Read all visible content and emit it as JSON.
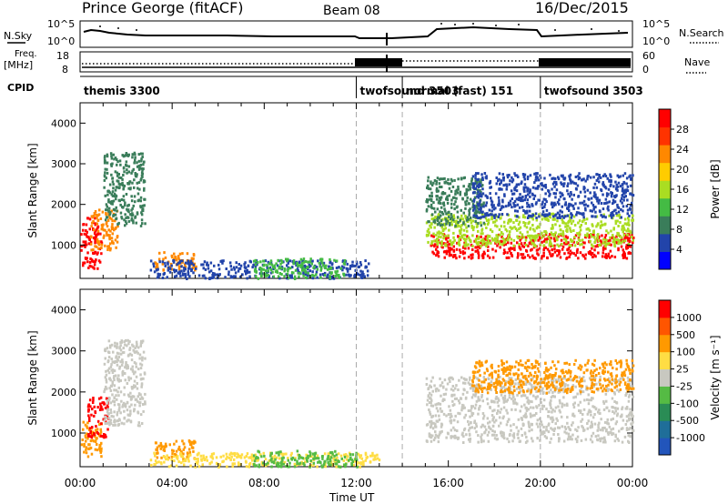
{
  "header": {
    "station": "Prince George (fitACF)",
    "beam": "Beam 08",
    "date": "16/Dec/2015"
  },
  "top_panels": {
    "nsky_label": "N.Sky",
    "nsearch_label": "N.Search",
    "noise_ticks": [
      "10^5",
      "10^0"
    ],
    "freq_label": "Freq.",
    "freq_unit": "[MHz]",
    "freq_ticks": [
      "18",
      "8"
    ],
    "nave_label": "Nave",
    "nave_ticks": [
      "60",
      "0"
    ],
    "cpid_label": "CPID",
    "cpid_segments": [
      {
        "label": "themis 3300",
        "start": 0,
        "end": 12
      },
      {
        "label": "twofsound 3503",
        "start": 12,
        "end": 14
      },
      {
        "label": "normal (fast) 151",
        "start": 14,
        "end": 20
      },
      {
        "label": "twofsound 3503",
        "start": 20,
        "end": 24
      }
    ]
  },
  "axes": {
    "ylabel": "Slant Range [km]",
    "yticks": [
      "4000",
      "3000",
      "2000",
      "1000"
    ],
    "xticks": [
      "00:00",
      "04:00",
      "08:00",
      "12:00",
      "16:00",
      "20:00",
      "00:00"
    ],
    "xlabel": "Time UT",
    "dashed_times": [
      12,
      14,
      20
    ]
  },
  "colors": {
    "power": [
      "#0000ff",
      "#2244aa",
      "#3a7d5a",
      "#44bb44",
      "#aadd22",
      "#ffcc00",
      "#ff8800",
      "#ff3300",
      "#ff0000"
    ],
    "velocity": [
      "#2255bb",
      "#1f6e99",
      "#2a8c55",
      "#55bb44",
      "#c8c8c0",
      "#ffdd44",
      "#ff9900",
      "#ff5500",
      "#ff0000"
    ]
  },
  "chart_data": [
    {
      "type": "heatmap",
      "title": "Power",
      "colorbar_label": "Power [dB]",
      "colorbar_ticks": [
        "28",
        "24",
        "20",
        "16",
        "12",
        "8",
        "4"
      ],
      "x_unit": "hours UT",
      "xlim": [
        0,
        24
      ],
      "ylim": [
        180,
        4500
      ],
      "regions": [
        {
          "t": [
            0,
            0.9
          ],
          "r": [
            450,
            1700
          ],
          "class": 8
        },
        {
          "t": [
            0.4,
            1.6
          ],
          "r": [
            900,
            1900
          ],
          "class": 6
        },
        {
          "t": [
            1.0,
            2.8
          ],
          "r": [
            1500,
            3300
          ],
          "class": 2
        },
        {
          "t": [
            3.2,
            5.0
          ],
          "r": [
            400,
            850
          ],
          "class": 6
        },
        {
          "t": [
            3.0,
            12.5
          ],
          "r": [
            200,
            650
          ],
          "class": 1
        },
        {
          "t": [
            7.5,
            11.5
          ],
          "r": [
            200,
            700
          ],
          "class": 3
        },
        {
          "t": [
            15.2,
            24
          ],
          "r": [
            700,
            1300
          ],
          "class": 8
        },
        {
          "t": [
            15.0,
            24
          ],
          "r": [
            1000,
            1800
          ],
          "class": 4
        },
        {
          "t": [
            15.0,
            17.5
          ],
          "r": [
            1500,
            2700
          ],
          "class": 2
        },
        {
          "t": [
            17.0,
            24
          ],
          "r": [
            1700,
            2800
          ],
          "class": 1
        }
      ]
    },
    {
      "type": "heatmap",
      "title": "Velocity",
      "colorbar_label": "Velocity [m s⁻¹]",
      "colorbar_ticks": [
        "1000",
        "500",
        "100",
        "25",
        "-25",
        "-100",
        "-500",
        "-1000"
      ],
      "x_unit": "hours UT",
      "xlim": [
        0,
        24
      ],
      "ylim": [
        180,
        4500
      ],
      "regions": [
        {
          "t": [
            0,
            0.9
          ],
          "r": [
            450,
            1300
          ],
          "class": 6
        },
        {
          "t": [
            0.3,
            1.2
          ],
          "r": [
            900,
            1900
          ],
          "class": 8
        },
        {
          "t": [
            1.0,
            2.8
          ],
          "r": [
            1200,
            3300
          ],
          "class": 4
        },
        {
          "t": [
            3.2,
            5.0
          ],
          "r": [
            400,
            850
          ],
          "class": 6
        },
        {
          "t": [
            3.0,
            13.0
          ],
          "r": [
            200,
            550
          ],
          "class": 5
        },
        {
          "t": [
            7.5,
            12.0
          ],
          "r": [
            200,
            600
          ],
          "class": 3
        },
        {
          "t": [
            15.0,
            24
          ],
          "r": [
            800,
            2400
          ],
          "class": 4
        },
        {
          "t": [
            17.0,
            24
          ],
          "r": [
            2000,
            2800
          ],
          "class": 6
        }
      ]
    }
  ]
}
